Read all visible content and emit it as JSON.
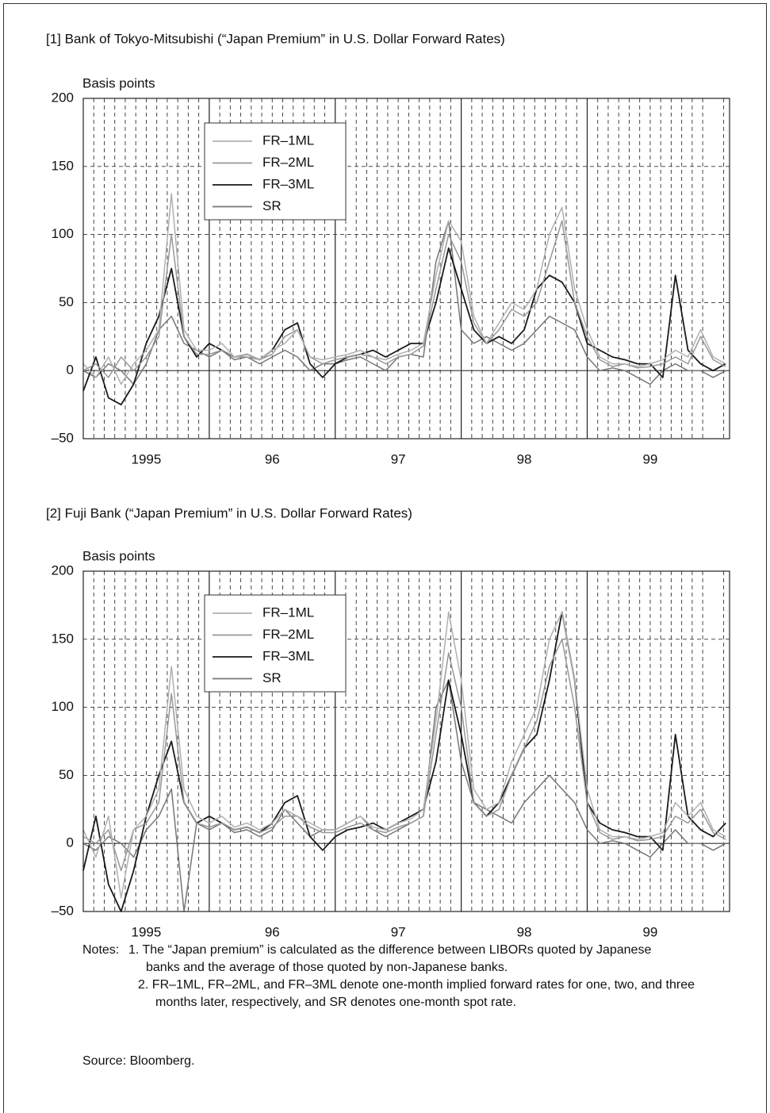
{
  "chart_data": [
    {
      "type": "line",
      "title": "[1] Bank of Tokyo-Mitsubishi (“Japan Premium” in U.S. Dollar Forward Rates)",
      "ylabel": "Basis points",
      "x": [
        1995.0,
        1995.1,
        1995.2,
        1995.3,
        1995.4,
        1995.5,
        1995.6,
        1995.7,
        1995.8,
        1995.9,
        1996.0,
        1996.1,
        1996.2,
        1996.3,
        1996.4,
        1996.5,
        1996.6,
        1996.7,
        1996.8,
        1996.9,
        1997.0,
        1997.1,
        1997.2,
        1997.3,
        1997.4,
        1997.5,
        1997.6,
        1997.7,
        1997.8,
        1997.9,
        1998.0,
        1998.1,
        1998.2,
        1998.3,
        1998.4,
        1998.5,
        1998.6,
        1998.7,
        1998.8,
        1998.9,
        1999.0,
        1999.1,
        1999.2,
        1999.3,
        1999.4,
        1999.5,
        1999.6,
        1999.7,
        1999.8,
        1999.9,
        2000.0,
        2000.1
      ],
      "xlim": [
        1995,
        2000.13
      ],
      "xticks": [
        {
          "value": 1995.5,
          "label": "1995"
        },
        {
          "value": 1996.5,
          "label": "96"
        },
        {
          "value": 1997.5,
          "label": "97"
        },
        {
          "value": 1998.5,
          "label": "98"
        },
        {
          "value": 1999.5,
          "label": "99"
        }
      ],
      "major_grid": [
        1996,
        1997,
        1998,
        1999
      ],
      "minor_grid": "monthly",
      "ylim": [
        -50,
        200
      ],
      "yticks": [
        200,
        150,
        100,
        50,
        0,
        {
          "value": -50,
          "label": "–50"
        }
      ],
      "grid": true,
      "series": [
        {
          "name": "FR–1ML",
          "color": "#b0b0b0",
          "values": [
            5,
            -5,
            10,
            -10,
            5,
            15,
            30,
            130,
            30,
            15,
            15,
            20,
            10,
            12,
            8,
            15,
            20,
            30,
            10,
            8,
            10,
            12,
            15,
            10,
            8,
            12,
            15,
            20,
            70,
            110,
            95,
            40,
            20,
            35,
            50,
            45,
            60,
            100,
            120,
            60,
            30,
            10,
            5,
            5,
            3,
            5,
            8,
            15,
            10,
            30,
            10,
            5
          ]
        },
        {
          "name": "FR–2ML",
          "color": "#989898",
          "values": [
            0,
            5,
            -5,
            10,
            0,
            10,
            25,
            100,
            25,
            12,
            12,
            15,
            10,
            10,
            8,
            12,
            25,
            30,
            10,
            5,
            8,
            10,
            12,
            10,
            5,
            10,
            12,
            18,
            60,
            100,
            80,
            35,
            20,
            30,
            45,
            40,
            50,
            80,
            110,
            50,
            25,
            8,
            3,
            5,
            2,
            3,
            5,
            10,
            5,
            25,
            8,
            3
          ]
        },
        {
          "name": "FR–3ML",
          "color": "#1a1a1a",
          "values": [
            -15,
            10,
            -20,
            -25,
            -10,
            20,
            40,
            75,
            25,
            10,
            20,
            15,
            10,
            12,
            8,
            15,
            30,
            35,
            5,
            -5,
            5,
            10,
            12,
            15,
            10,
            15,
            20,
            20,
            50,
            90,
            60,
            30,
            20,
            25,
            20,
            30,
            60,
            70,
            65,
            50,
            20,
            15,
            10,
            8,
            5,
            5,
            -5,
            70,
            15,
            5,
            0,
            5
          ]
        },
        {
          "name": "SR",
          "color": "#767676",
          "values": [
            0,
            -5,
            5,
            0,
            -10,
            5,
            30,
            40,
            20,
            15,
            10,
            15,
            8,
            10,
            5,
            10,
            15,
            10,
            0,
            5,
            5,
            8,
            10,
            5,
            0,
            10,
            12,
            10,
            80,
            110,
            30,
            20,
            25,
            20,
            15,
            20,
            30,
            40,
            35,
            30,
            10,
            0,
            2,
            0,
            -5,
            -10,
            0,
            5,
            0,
            0,
            -5,
            0
          ]
        }
      ]
    },
    {
      "type": "line",
      "title": "[2] Fuji Bank (“Japan Premium” in U.S. Dollar Forward Rates)",
      "ylabel": "Basis points",
      "x": [
        1995.0,
        1995.1,
        1995.2,
        1995.3,
        1995.4,
        1995.5,
        1995.6,
        1995.7,
        1995.8,
        1995.9,
        1996.0,
        1996.1,
        1996.2,
        1996.3,
        1996.4,
        1996.5,
        1996.6,
        1996.7,
        1996.8,
        1996.9,
        1997.0,
        1997.1,
        1997.2,
        1997.3,
        1997.4,
        1997.5,
        1997.6,
        1997.7,
        1997.8,
        1997.9,
        1998.0,
        1998.1,
        1998.2,
        1998.3,
        1998.4,
        1998.5,
        1998.6,
        1998.7,
        1998.8,
        1998.9,
        1999.0,
        1999.1,
        1999.2,
        1999.3,
        1999.4,
        1999.5,
        1999.6,
        1999.7,
        1999.8,
        1999.9,
        2000.0,
        2000.1
      ],
      "xlim": [
        1995,
        2000.13
      ],
      "xticks": [
        {
          "value": 1995.5,
          "label": "1995"
        },
        {
          "value": 1996.5,
          "label": "96"
        },
        {
          "value": 1997.5,
          "label": "97"
        },
        {
          "value": 1998.5,
          "label": "98"
        },
        {
          "value": 1999.5,
          "label": "99"
        }
      ],
      "major_grid": [
        1996,
        1997,
        1998,
        1999
      ],
      "minor_grid": "monthly",
      "ylim": [
        -50,
        200
      ],
      "yticks": [
        200,
        150,
        100,
        50,
        0,
        {
          "value": -50,
          "label": "–50"
        }
      ],
      "grid": true,
      "series": [
        {
          "name": "FR–1ML",
          "color": "#b0b0b0",
          "values": [
            10,
            -10,
            20,
            -40,
            10,
            20,
            40,
            130,
            40,
            20,
            15,
            20,
            12,
            15,
            10,
            15,
            25,
            20,
            15,
            10,
            10,
            15,
            20,
            12,
            10,
            15,
            18,
            25,
            90,
            170,
            120,
            40,
            25,
            30,
            60,
            80,
            100,
            150,
            170,
            120,
            40,
            10,
            5,
            5,
            3,
            5,
            8,
            30,
            20,
            30,
            10,
            5
          ]
        },
        {
          "name": "FR–2ML",
          "color": "#989898",
          "values": [
            5,
            0,
            10,
            -20,
            10,
            15,
            30,
            110,
            30,
            15,
            12,
            15,
            10,
            12,
            8,
            12,
            20,
            20,
            12,
            8,
            8,
            12,
            15,
            10,
            8,
            12,
            15,
            20,
            80,
            140,
            100,
            30,
            20,
            25,
            50,
            70,
            90,
            130,
            150,
            100,
            30,
            8,
            3,
            5,
            2,
            3,
            5,
            20,
            15,
            25,
            8,
            3
          ]
        },
        {
          "name": "FR–3ML",
          "color": "#1a1a1a",
          "values": [
            -20,
            20,
            -30,
            -50,
            -20,
            20,
            50,
            75,
            30,
            15,
            20,
            15,
            10,
            12,
            8,
            15,
            30,
            35,
            5,
            -5,
            5,
            10,
            12,
            15,
            10,
            15,
            20,
            25,
            60,
            120,
            80,
            30,
            20,
            30,
            50,
            70,
            80,
            120,
            170,
            120,
            30,
            15,
            10,
            8,
            5,
            5,
            -5,
            80,
            20,
            10,
            5,
            15
          ]
        },
        {
          "name": "SR",
          "color": "#767676",
          "values": [
            0,
            -5,
            5,
            0,
            -10,
            10,
            20,
            40,
            -50,
            15,
            10,
            15,
            8,
            10,
            5,
            10,
            25,
            15,
            5,
            10,
            10,
            15,
            20,
            10,
            5,
            10,
            15,
            20,
            100,
            120,
            60,
            30,
            25,
            20,
            15,
            30,
            40,
            50,
            40,
            30,
            10,
            0,
            2,
            0,
            -5,
            -10,
            0,
            10,
            0,
            0,
            -5,
            0
          ]
        }
      ]
    }
  ],
  "notes": {
    "label": "Notes:",
    "items": [
      "1. The “Japan premium” is calculated as the difference between LIBORs quoted by Japanese banks and the average of those quoted by non-Japanese banks.",
      "2. FR–1ML, FR–2ML, and FR–3ML denote one-month implied forward rates for one, two, and three months later, respectively, and SR denotes one-month spot rate."
    ]
  },
  "source": "Source: Bloomberg."
}
